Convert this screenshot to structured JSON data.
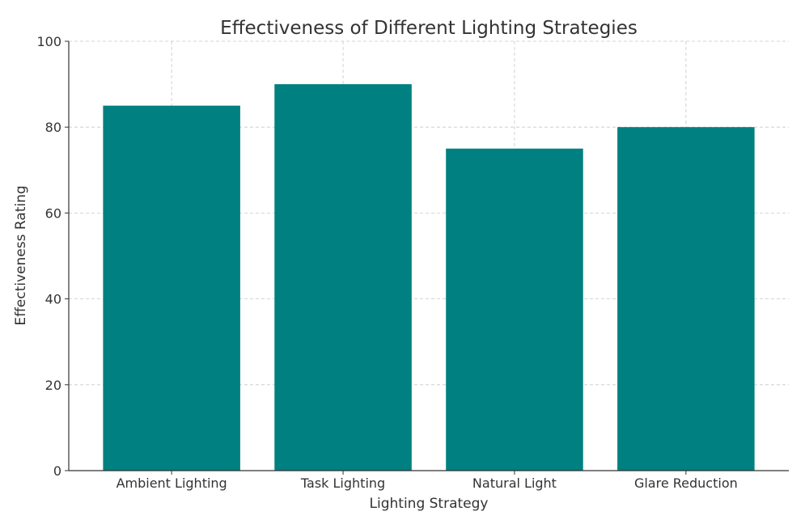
{
  "chart_data": {
    "type": "bar",
    "title": "Effectiveness of Different Lighting Strategies",
    "xlabel": "Lighting Strategy",
    "ylabel": "Effectiveness Rating",
    "categories": [
      "Ambient Lighting",
      "Task Lighting",
      "Natural Light",
      "Glare Reduction"
    ],
    "values": [
      85,
      90,
      75,
      80
    ],
    "ylim": [
      0,
      100
    ],
    "yticks": [
      0,
      20,
      40,
      60,
      80,
      100
    ],
    "grid": true,
    "bar_color": "#008080"
  }
}
